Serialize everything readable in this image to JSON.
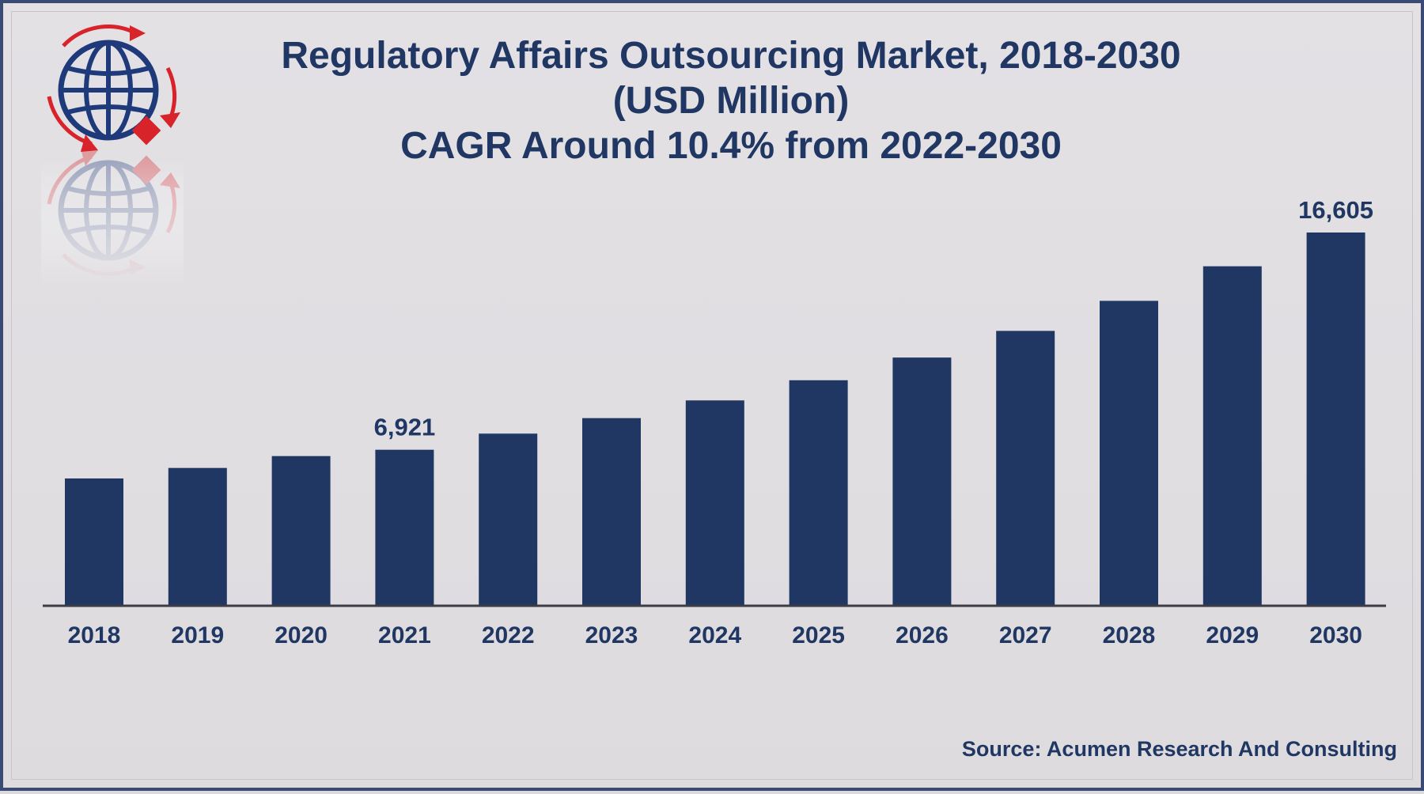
{
  "header": {
    "title_line1": "Regulatory Affairs Outsourcing Market, 2018-2030",
    "title_line2": "(USD Million)",
    "title_line3": "CAGR Around 10.4% from 2022-2030"
  },
  "footer": {
    "source": "Source: Acumen Research And Consulting"
  },
  "colors": {
    "bar": "#213763",
    "axis": "#3c3c44",
    "logo_blue": "#1f3a7a",
    "logo_red": "#d8232a"
  },
  "logo": {
    "icon": "globe-logo-icon"
  },
  "chart_data": {
    "type": "bar",
    "title": "Regulatory Affairs Outsourcing Market, 2018-2030 (USD Million) CAGR Around 10.4% from 2022-2030",
    "categories": [
      "2018",
      "2019",
      "2020",
      "2021",
      "2022",
      "2023",
      "2024",
      "2025",
      "2026",
      "2027",
      "2028",
      "2029",
      "2030"
    ],
    "values": [
      5640,
      6110,
      6640,
      6921,
      7640,
      8330,
      9120,
      10020,
      11030,
      12220,
      13560,
      15100,
      16605
    ],
    "data_labels": [
      {
        "category": "2021",
        "text": "6,921"
      },
      {
        "category": "2030",
        "text": "16,605"
      }
    ],
    "xlabel": "",
    "ylabel": "",
    "ylim": [
      0,
      16605
    ],
    "grid": false,
    "legend": "none"
  }
}
